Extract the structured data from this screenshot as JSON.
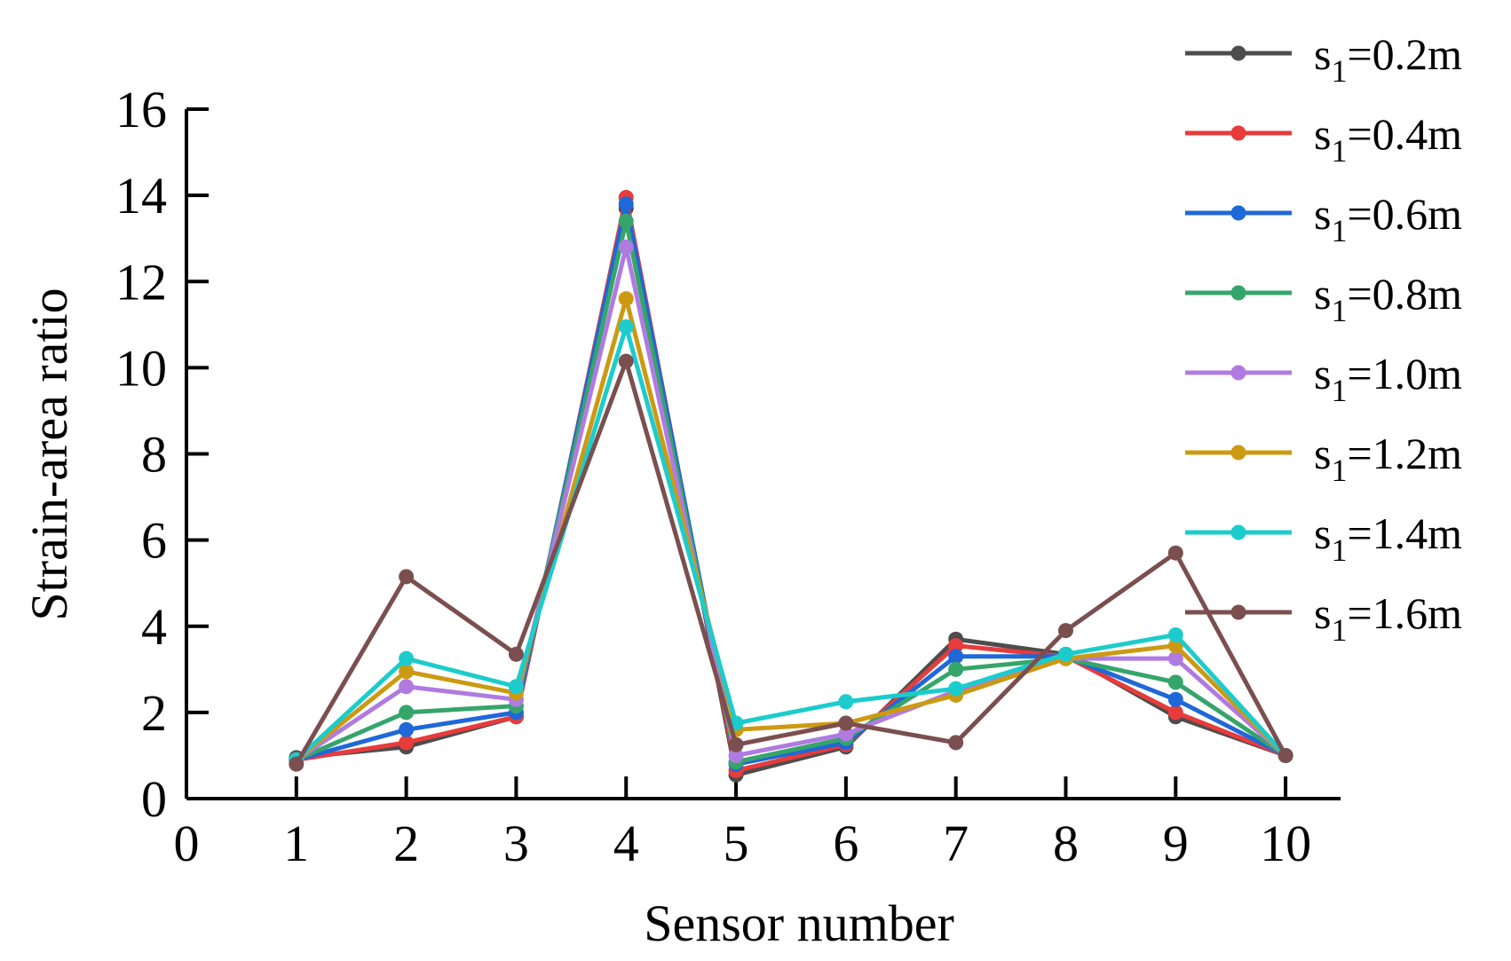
{
  "chart_data": {
    "type": "line",
    "xlabel": "Sensor number",
    "ylabel": "Strain-area ratio",
    "xlim": [
      0,
      10.5
    ],
    "ylim": [
      0,
      16
    ],
    "x_ticks": [
      0,
      1,
      2,
      3,
      4,
      5,
      6,
      7,
      8,
      9,
      10
    ],
    "y_ticks": [
      0,
      2,
      4,
      6,
      8,
      10,
      12,
      14,
      16
    ],
    "grid": false,
    "legend_position": "top-right",
    "x": [
      1,
      2,
      3,
      4,
      5,
      6,
      7,
      8,
      9,
      10
    ],
    "series": [
      {
        "prefix": "s",
        "subscript": "1",
        "suffix": "=0.2m",
        "color": "#4d4d4d",
        "values": [
          0.95,
          1.2,
          1.9,
          13.7,
          0.55,
          1.2,
          3.7,
          3.35,
          1.9,
          1.0
        ]
      },
      {
        "prefix": "s",
        "subscript": "1",
        "suffix": "=0.4m",
        "color": "#e83b3b",
        "values": [
          0.9,
          1.3,
          1.9,
          13.95,
          0.65,
          1.25,
          3.55,
          3.3,
          2.0,
          1.0
        ]
      },
      {
        "prefix": "s",
        "subscript": "1",
        "suffix": "=0.6m",
        "color": "#1f68d8",
        "values": [
          0.9,
          1.6,
          2.0,
          13.8,
          0.8,
          1.3,
          3.3,
          3.3,
          2.3,
          1.0
        ]
      },
      {
        "prefix": "s",
        "subscript": "1",
        "suffix": "=0.8m",
        "color": "#36a56b",
        "values": [
          0.9,
          2.0,
          2.15,
          13.4,
          0.85,
          1.4,
          3.0,
          3.25,
          2.7,
          1.0
        ]
      },
      {
        "prefix": "s",
        "subscript": "1",
        "suffix": "=1.0m",
        "color": "#b07be0",
        "values": [
          0.9,
          2.6,
          2.3,
          12.8,
          1.0,
          1.5,
          2.5,
          3.25,
          3.25,
          1.0
        ]
      },
      {
        "prefix": "s",
        "subscript": "1",
        "suffix": "=1.2m",
        "color": "#cc9a12",
        "values": [
          0.9,
          2.95,
          2.45,
          11.6,
          1.6,
          1.75,
          2.4,
          3.25,
          3.55,
          1.0
        ]
      },
      {
        "prefix": "s",
        "subscript": "1",
        "suffix": "=1.4m",
        "color": "#1ccccc",
        "values": [
          0.9,
          3.25,
          2.6,
          10.95,
          1.75,
          2.25,
          2.55,
          3.35,
          3.8,
          1.0
        ]
      },
      {
        "prefix": "s",
        "subscript": "1",
        "suffix": "=1.6m",
        "color": "#7b4f4f",
        "values": [
          0.8,
          5.15,
          3.35,
          10.15,
          1.25,
          1.75,
          1.3,
          3.9,
          5.7,
          1.0
        ]
      }
    ]
  }
}
